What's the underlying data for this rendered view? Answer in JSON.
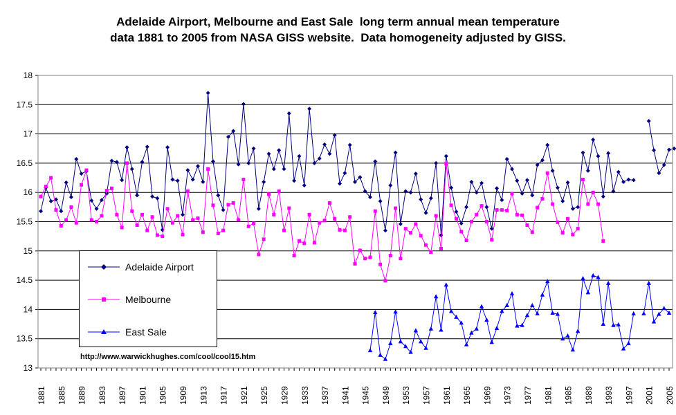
{
  "title": {
    "line1": "Adelaide Airport, Melbourne and East Sale  long term annual mean temperature",
    "line2": "data 1881 to 2005 from NASA GISS website.  Data homogeneity adjusted by GISS."
  },
  "source_url": "http://www.warwickhughes.com/cool/cool15.htm",
  "colors": {
    "adelaide": "#000080",
    "melbourne": "#ff00ff",
    "east_sale": "#0000ff",
    "grid": "#000000"
  },
  "chart_data": {
    "type": "line",
    "title": "Adelaide Airport, Melbourne and East Sale  long term annual mean temperature data 1881 to 2005 from NASA GISS website.  Data homogeneity adjusted by GISS.",
    "ylim": [
      13,
      18
    ],
    "yticks": [
      13,
      13.5,
      14,
      14.5,
      15,
      15.5,
      16,
      16.5,
      17,
      17.5,
      18
    ],
    "xlim": [
      1881,
      2005
    ],
    "xticks": [
      1881,
      1885,
      1889,
      1893,
      1897,
      1901,
      1905,
      1909,
      1913,
      1917,
      1921,
      1925,
      1929,
      1933,
      1937,
      1941,
      1945,
      1949,
      1953,
      1957,
      1961,
      1965,
      1969,
      1973,
      1977,
      1981,
      1985,
      1989,
      1993,
      1997,
      2001,
      2005
    ],
    "grid": "horizontal",
    "legend_position": "bottom-left",
    "series": [
      {
        "name": "Adelaide Airport",
        "marker": "diamond",
        "color": "#000080",
        "start_year": 1881,
        "values": [
          15.68,
          16.08,
          15.85,
          15.88,
          15.68,
          16.17,
          15.92,
          16.57,
          16.32,
          16.36,
          15.86,
          15.72,
          15.87,
          15.98,
          16.54,
          16.52,
          16.21,
          16.77,
          16.4,
          15.95,
          16.52,
          16.78,
          15.93,
          15.9,
          15.36,
          16.77,
          16.22,
          16.2,
          15.62,
          16.38,
          16.22,
          16.45,
          16.18,
          17.7,
          16.53,
          15.95,
          15.7,
          16.95,
          17.05,
          16.48,
          17.51,
          16.5,
          16.75,
          15.72,
          16.18,
          16.66,
          16.4,
          16.72,
          16.4,
          17.35,
          16.2,
          16.62,
          16.12,
          17.43,
          16.5,
          16.58,
          16.82,
          16.66,
          16.98,
          16.15,
          16.33,
          16.81,
          16.18,
          16.26,
          16.02,
          15.92,
          16.53,
          15.85,
          15.35,
          16.12,
          16.68,
          15.46,
          16.02,
          16.0,
          16.32,
          15.88,
          15.65,
          15.9,
          16.5,
          15.27,
          16.62,
          16.08,
          15.67,
          15.47,
          15.75,
          16.18,
          16.0,
          16.16,
          15.75,
          15.38,
          16.07,
          15.87,
          16.57,
          16.4,
          16.2,
          15.98,
          16.21,
          15.95,
          16.47,
          16.55,
          16.81,
          16.37,
          16.08,
          15.85,
          16.17,
          15.72,
          15.75,
          16.68,
          16.37,
          16.9,
          16.62,
          15.93,
          16.67,
          16.02,
          16.35,
          16.18,
          16.22,
          16.21,
          null,
          null,
          17.22,
          16.72,
          16.33,
          16.47,
          16.73,
          16.75
        ]
      },
      {
        "name": "Melbourne",
        "marker": "square",
        "color": "#ff00ff",
        "start_year": 1881,
        "values": [
          15.93,
          16.1,
          16.25,
          15.7,
          15.43,
          15.53,
          15.75,
          15.48,
          16.13,
          16.38,
          15.53,
          15.5,
          15.6,
          16.03,
          16.07,
          15.62,
          15.4,
          16.5,
          15.68,
          15.44,
          15.62,
          15.35,
          15.58,
          15.27,
          15.25,
          15.72,
          15.48,
          15.6,
          15.28,
          16.02,
          15.53,
          15.56,
          15.32,
          16.4,
          15.78,
          15.3,
          15.35,
          15.79,
          15.82,
          15.53,
          16.22,
          15.42,
          15.47,
          14.94,
          15.2,
          15.97,
          15.62,
          16.02,
          15.35,
          15.73,
          14.92,
          15.17,
          15.13,
          15.62,
          15.14,
          15.48,
          15.52,
          15.82,
          15.55,
          15.36,
          15.35,
          15.58,
          14.78,
          15.01,
          14.87,
          14.89,
          15.68,
          14.77,
          14.49,
          14.92,
          15.73,
          14.87,
          15.38,
          15.31,
          15.46,
          15.26,
          15.1,
          14.98,
          15.6,
          15.04,
          16.49,
          15.78,
          15.55,
          15.33,
          15.18,
          15.5,
          15.62,
          15.77,
          15.5,
          15.19,
          15.7,
          15.7,
          15.69,
          15.98,
          15.62,
          15.61,
          15.44,
          15.32,
          15.74,
          15.89,
          16.33,
          15.8,
          15.49,
          15.31,
          15.55,
          15.28,
          15.38,
          16.22,
          15.8,
          16.0,
          15.8,
          15.17
        ]
      },
      {
        "name": "East Sale",
        "marker": "triangle",
        "color": "#0000ff",
        "start_year": 1946,
        "values": [
          13.3,
          13.95,
          13.22,
          13.15,
          13.42,
          13.96,
          13.45,
          13.37,
          13.27,
          13.64,
          13.45,
          13.34,
          13.67,
          14.22,
          13.65,
          14.42,
          13.97,
          13.87,
          13.77,
          13.4,
          13.6,
          13.67,
          14.05,
          13.82,
          13.44,
          13.68,
          13.97,
          14.07,
          14.27,
          13.72,
          13.73,
          13.9,
          14.07,
          13.93,
          14.25,
          14.48,
          13.94,
          13.92,
          13.5,
          13.55,
          13.31,
          13.63,
          14.53,
          14.29,
          14.58,
          14.55,
          13.75,
          14.45,
          13.73,
          13.74,
          13.33,
          13.42,
          13.93,
          null,
          13.93,
          14.45,
          13.79,
          13.92,
          14.02,
          13.94
        ]
      }
    ]
  },
  "legend": {
    "items": [
      {
        "label": "Adelaide Airport"
      },
      {
        "label": "Melbourne"
      },
      {
        "label": "East Sale"
      }
    ]
  }
}
